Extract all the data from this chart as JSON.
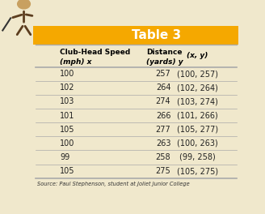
{
  "title": "Table 3",
  "title_bg_color": "#F5A800",
  "title_text_color": "#FFFFFF",
  "table_bg_color": "#F0E8CC",
  "header_row_col1_line1": "Club-Head Speed",
  "header_row_col1_line2": "(mph) x",
  "header_row_col2_line1": "Distance",
  "header_row_col2_line2": "(yards) y",
  "header_row_col3": "(x, y)",
  "rows": [
    [
      "100",
      "257",
      "(100, 257)"
    ],
    [
      "102",
      "264",
      "(102, 264)"
    ],
    [
      "103",
      "274",
      "(103, 274)"
    ],
    [
      "101",
      "266",
      "(101, 266)"
    ],
    [
      "105",
      "277",
      "(105, 277)"
    ],
    [
      "100",
      "263",
      "(100, 263)"
    ],
    [
      "99",
      "258",
      "(99, 258)"
    ],
    [
      "105",
      "275",
      "(105, 275)"
    ]
  ],
  "source_text": "Source: Paul Stephenson, student at Joliet Junior College",
  "line_color": "#AAAAAA",
  "header_text_color": "#000000",
  "data_text_color": "#222222",
  "source_text_color": "#333333"
}
